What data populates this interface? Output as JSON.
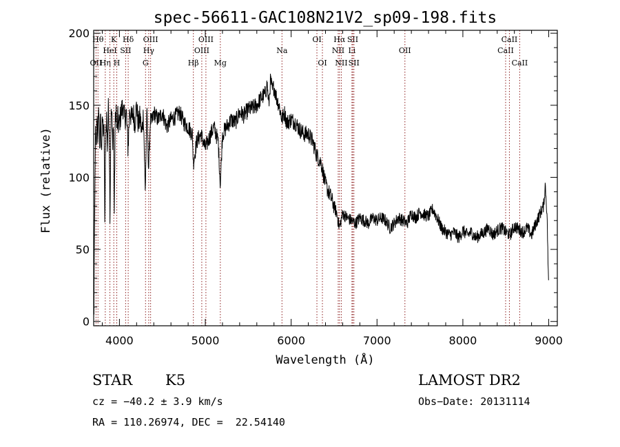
{
  "chart_data": {
    "type": "line",
    "title": "spec-56611-GAC108N21V2_sp09-198.fits",
    "xlabel": "Wavelength (Å)",
    "ylabel": "Flux (relative)",
    "xlim": [
      3700,
      9100
    ],
    "ylim": [
      -3,
      202
    ],
    "x_ticks": [
      4000,
      5000,
      6000,
      7000,
      8000,
      9000
    ],
    "y_ticks": [
      0,
      50,
      100,
      150,
      200
    ],
    "grid": false,
    "line_color": "#000000",
    "marker_color": "#8b1a1a",
    "series": [
      {
        "x": [
          3700,
          3710,
          3720,
          3730,
          3740,
          3750,
          3760,
          3770,
          3780,
          3790,
          3800,
          3810,
          3820,
          3830,
          3840,
          3850,
          3860,
          3870,
          3880,
          3890,
          3900,
          3910,
          3920,
          3930,
          3940,
          3950,
          3960,
          3970,
          3980,
          3990,
          4000,
          4020,
          4040,
          4060,
          4080,
          4100,
          4120,
          4140,
          4160,
          4180,
          4200,
          4220,
          4240,
          4260,
          4280,
          4300,
          4320,
          4340,
          4360,
          4380,
          4400,
          4450,
          4500,
          4550,
          4600,
          4650,
          4700,
          4750,
          4800,
          4850,
          4861,
          4900,
          4950,
          5000,
          5050,
          5100,
          5150,
          5175,
          5200,
          5250,
          5300,
          5350,
          5400,
          5450,
          5500,
          5550,
          5600,
          5650,
          5700,
          5720,
          5740,
          5760,
          5780,
          5800,
          5830,
          5860,
          5893,
          5920,
          5950,
          6000,
          6050,
          6100,
          6150,
          6200,
          6250,
          6300,
          6350,
          6400,
          6450,
          6500,
          6530,
          6563,
          6600,
          6650,
          6700,
          6750,
          6800,
          6850,
          6900,
          6950,
          7000,
          7050,
          7100,
          7150,
          7200,
          7250,
          7300,
          7350,
          7400,
          7450,
          7500,
          7550,
          7600,
          7650,
          7700,
          7750,
          7800,
          7850,
          7900,
          7950,
          8000,
          8050,
          8100,
          8150,
          8200,
          8250,
          8300,
          8350,
          8400,
          8450,
          8500,
          8550,
          8600,
          8650,
          8700,
          8750,
          8800,
          8850,
          8900,
          8920,
          8940,
          8960,
          8980,
          9000
        ],
        "y": [
          5,
          60,
          130,
          118,
          145,
          125,
          150,
          120,
          140,
          115,
          148,
          128,
          138,
          65,
          130,
          142,
          120,
          148,
          138,
          70,
          140,
          145,
          125,
          138,
          75,
          135,
          150,
          130,
          142,
          135,
          138,
          145,
          150,
          140,
          145,
          120,
          148,
          140,
          145,
          138,
          150,
          136,
          142,
          130,
          145,
          90,
          145,
          105,
          140,
          138,
          145,
          140,
          145,
          135,
          140,
          142,
          145,
          138,
          135,
          130,
          110,
          125,
          130,
          120,
          128,
          135,
          125,
          95,
          130,
          135,
          140,
          138,
          145,
          143,
          147,
          148,
          150,
          155,
          158,
          165,
          150,
          168,
          160,
          163,
          155,
          150,
          140,
          145,
          138,
          140,
          138,
          133,
          130,
          130,
          125,
          115,
          110,
          95,
          88,
          80,
          75,
          65,
          75,
          72,
          70,
          68,
          72,
          70,
          68,
          72,
          70,
          72,
          70,
          65,
          68,
          72,
          70,
          68,
          75,
          72,
          76,
          74,
          73,
          78,
          72,
          65,
          62,
          60,
          62,
          58,
          63,
          60,
          62,
          58,
          60,
          62,
          65,
          60,
          63,
          65,
          62,
          60,
          66,
          64,
          62,
          65,
          60,
          68,
          75,
          78,
          80,
          95,
          75,
          20
        ]
      }
    ],
    "line_markers": [
      {
        "x": 3727,
        "label": "OII",
        "row": 3
      },
      {
        "x": 3750,
        "label": "Hθ",
        "row": 1
      },
      {
        "x": 3835,
        "label": "Hη",
        "row": 3
      },
      {
        "x": 3889,
        "label": "HeI",
        "row": 2
      },
      {
        "x": 3934,
        "label": "K",
        "row": 1
      },
      {
        "x": 3969,
        "label": "H",
        "row": 3
      },
      {
        "x": 4072,
        "label": "SII",
        "row": 2
      },
      {
        "x": 4102,
        "label": "Hδ",
        "row": 1
      },
      {
        "x": 4304,
        "label": "G",
        "row": 3
      },
      {
        "x": 4341,
        "label": "Hγ",
        "row": 2
      },
      {
        "x": 4363,
        "label": "OIII",
        "row": 1
      },
      {
        "x": 4861,
        "label": "Hβ",
        "row": 3
      },
      {
        "x": 4959,
        "label": "OIII",
        "row": 2
      },
      {
        "x": 5007,
        "label": "OIII",
        "row": 1
      },
      {
        "x": 5175,
        "label": "Mg",
        "row": 3
      },
      {
        "x": 5893,
        "label": "Na",
        "row": 2
      },
      {
        "x": 6300,
        "label": "OI",
        "row": 1
      },
      {
        "x": 6364,
        "label": "OI",
        "row": 3
      },
      {
        "x": 6548,
        "label": "NII",
        "row": 2
      },
      {
        "x": 6563,
        "label": "Hα",
        "row": 1
      },
      {
        "x": 6584,
        "label": "NII",
        "row": 3
      },
      {
        "x": 6708,
        "label": "Li",
        "row": 2
      },
      {
        "x": 6717,
        "label": "SII",
        "row": 1
      },
      {
        "x": 6731,
        "label": "SII",
        "row": 3
      },
      {
        "x": 7325,
        "label": "OII",
        "row": 2
      },
      {
        "x": 8498,
        "label": "CaII",
        "row": 2
      },
      {
        "x": 8542,
        "label": "CaII",
        "row": 1
      },
      {
        "x": 8662,
        "label": "CaII",
        "row": 3
      }
    ]
  },
  "info": {
    "object_class": "STAR",
    "subclass": "K5",
    "survey": "LAMOST DR2",
    "redshift": "cz = −40.2 ± 3.9 km/s",
    "obs_date": "Obs−Date: 20131114",
    "coords": "RA = 110.26974, DEC =  22.54140"
  }
}
